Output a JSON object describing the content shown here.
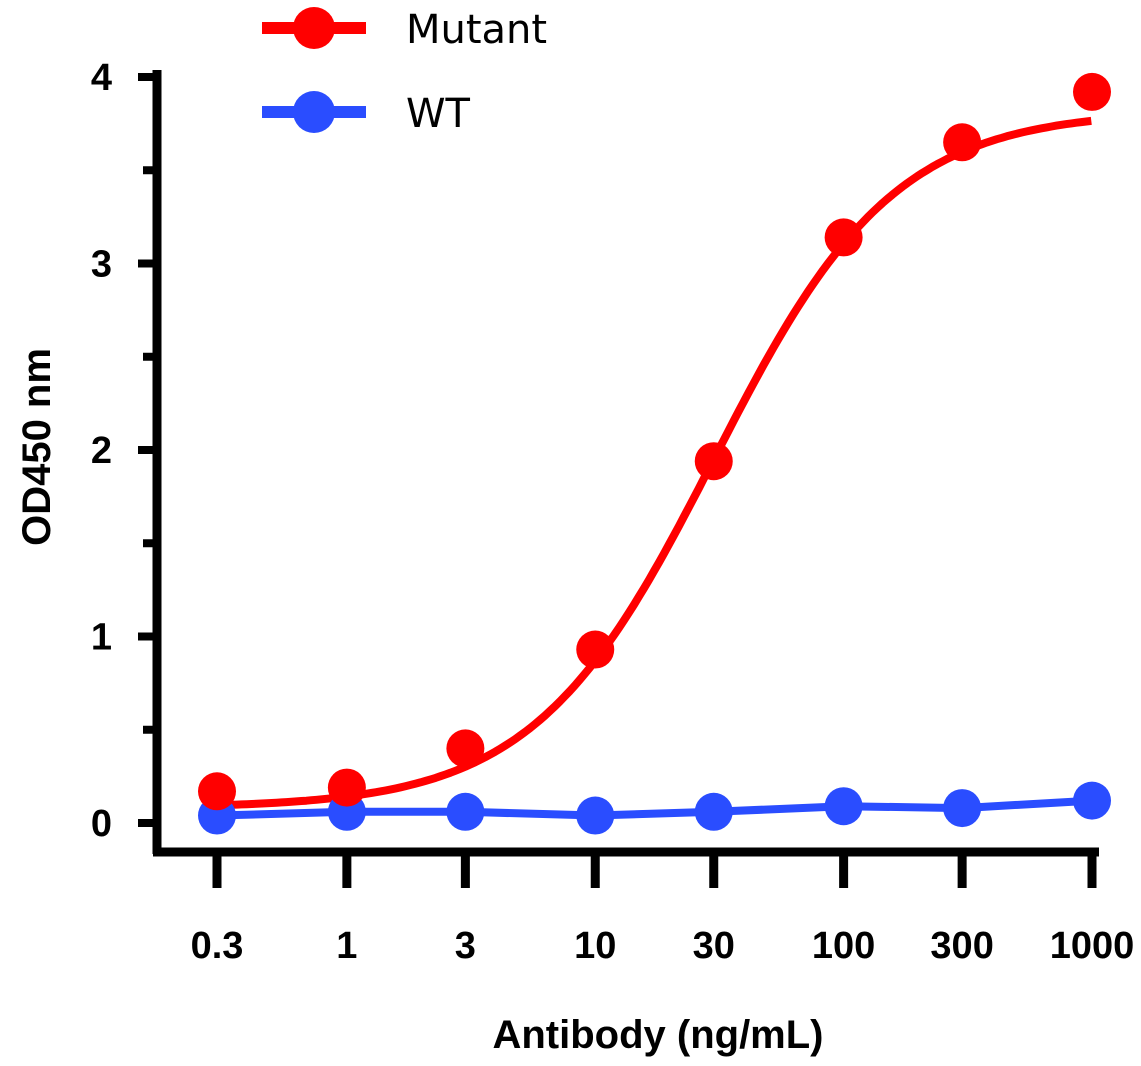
{
  "chart_data": {
    "type": "line",
    "title": "",
    "xlabel": "Antibody (ng/mL)",
    "ylabel": "OD450 nm",
    "x": [
      0.3,
      1,
      3,
      10,
      30,
      100,
      300,
      1000
    ],
    "x_tick_labels": [
      "0.3",
      "1",
      "3",
      "10",
      "30",
      "100",
      "300",
      "1000"
    ],
    "x_scale": "log",
    "y_ticks": [
      "0",
      "1",
      "2",
      "3",
      "4"
    ],
    "ylim": [
      0,
      4
    ],
    "grid": false,
    "legend_position": "top",
    "series": [
      {
        "name": "Mutant",
        "color": "#ff0000",
        "values": [
          0.17,
          0.19,
          0.4,
          0.93,
          1.94,
          3.14,
          3.65,
          3.92
        ]
      },
      {
        "name": "WT",
        "color": "#2a4dff",
        "values": [
          0.04,
          0.06,
          0.06,
          0.04,
          0.06,
          0.09,
          0.08,
          0.12
        ]
      }
    ]
  }
}
